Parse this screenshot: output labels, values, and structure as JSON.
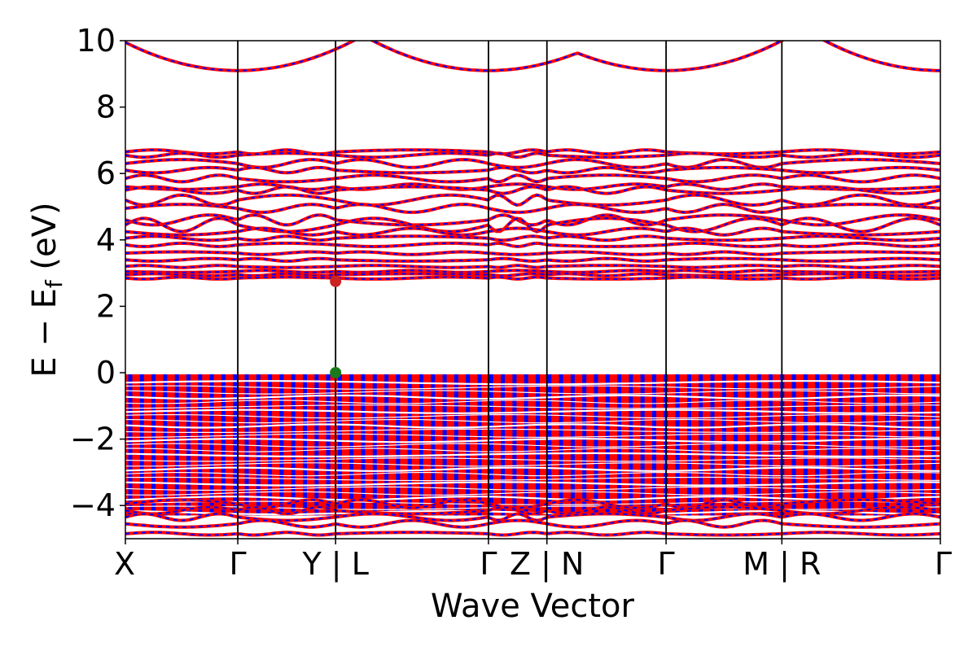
{
  "chart_data": {
    "type": "line",
    "title": "",
    "xlabel": "Wave Vector",
    "ylabel": {
      "main": "E − E",
      "sub": "f",
      "unit": " (eV)"
    },
    "ylim": [
      -5,
      10
    ],
    "y_ticks": [
      {
        "value": 10,
        "label": "10"
      },
      {
        "value": 8,
        "label": "8"
      },
      {
        "value": 6,
        "label": "6"
      },
      {
        "value": 4,
        "label": "4"
      },
      {
        "value": 2,
        "label": "2"
      },
      {
        "value": 0,
        "label": "0"
      },
      {
        "value": -2,
        "label": "−2"
      },
      {
        "value": -4,
        "label": "−4"
      }
    ],
    "x_ticks": [
      {
        "pos": 0.0,
        "label": "X"
      },
      {
        "pos": 1.0,
        "label": "Γ"
      },
      {
        "pos": 1.87,
        "label": "Y | L"
      },
      {
        "pos": 3.23,
        "label": "Γ"
      },
      {
        "pos": 3.75,
        "label": "Z | N"
      },
      {
        "pos": 4.81,
        "label": "Γ"
      },
      {
        "pos": 5.84,
        "label": "M | R"
      },
      {
        "pos": 7.25,
        "label": "Γ"
      }
    ],
    "xlim": [
      0,
      7.25
    ],
    "grid": false,
    "series": [
      {
        "role": "spin-up",
        "color": "#0000ff"
      },
      {
        "role": "spin-down",
        "color": "#ff0000"
      }
    ],
    "special_points": [
      {
        "role": "cbm",
        "x": 1.87,
        "y": 2.75,
        "color": "#cc2222"
      },
      {
        "role": "vbm",
        "x": 1.87,
        "y": 0.0,
        "color": "#1a7a1a"
      }
    ],
    "bands": {
      "upper": [
        {
          "center": 9.1,
          "type": "parabola",
          "min_points": [
            1.0,
            3.23,
            4.81,
            7.25
          ],
          "curv": 0.85
        },
        {
          "center": 6.65,
          "amp": 0.06
        },
        {
          "center": 6.55,
          "amp": 0.06
        },
        {
          "center": 6.3,
          "amp": 0.12
        },
        {
          "center": 6.1,
          "amp": 0.08
        },
        {
          "center": 5.85,
          "amp": 0.1
        },
        {
          "center": 5.6,
          "amp": 0.08
        },
        {
          "center": 5.5,
          "amp": 0.1
        },
        {
          "center": 5.2,
          "amp": 0.15
        },
        {
          "center": 4.95,
          "amp": 0.12
        },
        {
          "center": 4.6,
          "amp": 0.15
        },
        {
          "center": 4.45,
          "amp": 0.2
        },
        {
          "center": 4.25,
          "amp": 0.1
        },
        {
          "center": 4.05,
          "amp": 0.06
        },
        {
          "center": 3.85,
          "amp": 0.05
        },
        {
          "center": 3.6,
          "amp": 0.04
        },
        {
          "center": 3.4,
          "amp": 0.04
        },
        {
          "center": 3.2,
          "amp": 0.03
        },
        {
          "center": 3.05,
          "amp": 0.03
        },
        {
          "center": 2.95,
          "amp": 0.03
        },
        {
          "center": 2.85,
          "amp": 0.03
        }
      ],
      "valence_range": [
        -4.3,
        -0.05
      ],
      "lower": [
        {
          "center": -3.95,
          "amp": 0.12
        },
        {
          "center": -4.15,
          "amp": 0.1
        },
        {
          "center": -4.35,
          "amp": 0.1
        },
        {
          "center": -4.55,
          "amp": 0.1
        },
        {
          "center": -4.85,
          "amp": 0.04
        }
      ]
    }
  }
}
